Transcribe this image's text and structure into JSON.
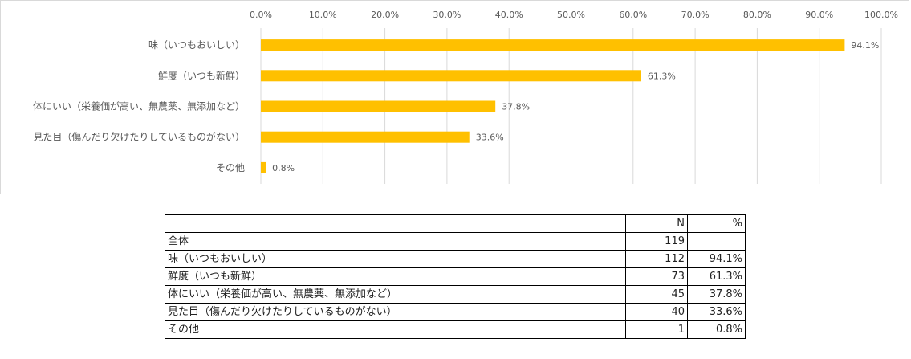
{
  "chart_data": {
    "type": "bar",
    "orientation": "horizontal",
    "categories": [
      "味（いつもおいしい）",
      "鮮度（いつも新鮮）",
      "体にいい（栄養価が高い、無農薬、無添加など）",
      "見た目（傷んだり欠けたりしているものがない）",
      "その他"
    ],
    "values": [
      94.1,
      61.3,
      37.8,
      33.6,
      0.8
    ],
    "value_labels": [
      "94.1%",
      "61.3%",
      "37.8%",
      "33.6%",
      "0.8%"
    ],
    "xlim": [
      0,
      100
    ],
    "x_ticks": [
      0,
      10,
      20,
      30,
      40,
      50,
      60,
      70,
      80,
      90,
      100
    ],
    "x_tick_labels": [
      "0.0%",
      "10.0%",
      "20.0%",
      "30.0%",
      "40.0%",
      "50.0%",
      "60.0%",
      "70.0%",
      "80.0%",
      "90.0%",
      "100.0%"
    ],
    "axis_position": "top",
    "grid": true,
    "bar_color": "#FFC000",
    "grid_color": "#D9D9D9",
    "title": "",
    "xlabel": "",
    "ylabel": ""
  },
  "table": {
    "headers": [
      "",
      "N",
      "%"
    ],
    "rows": [
      [
        "全体",
        "119",
        ""
      ],
      [
        "味（いつもおいしい）",
        "112",
        "94.1%"
      ],
      [
        "鮮度（いつも新鮮）",
        "73",
        "61.3%"
      ],
      [
        "体にいい（栄養価が高い、無農薬、無添加など）",
        "45",
        "37.8%"
      ],
      [
        "見た目（傷んだり欠けたりしているものがない）",
        "40",
        "33.6%"
      ],
      [
        "その他",
        "1",
        "0.8%"
      ]
    ]
  }
}
